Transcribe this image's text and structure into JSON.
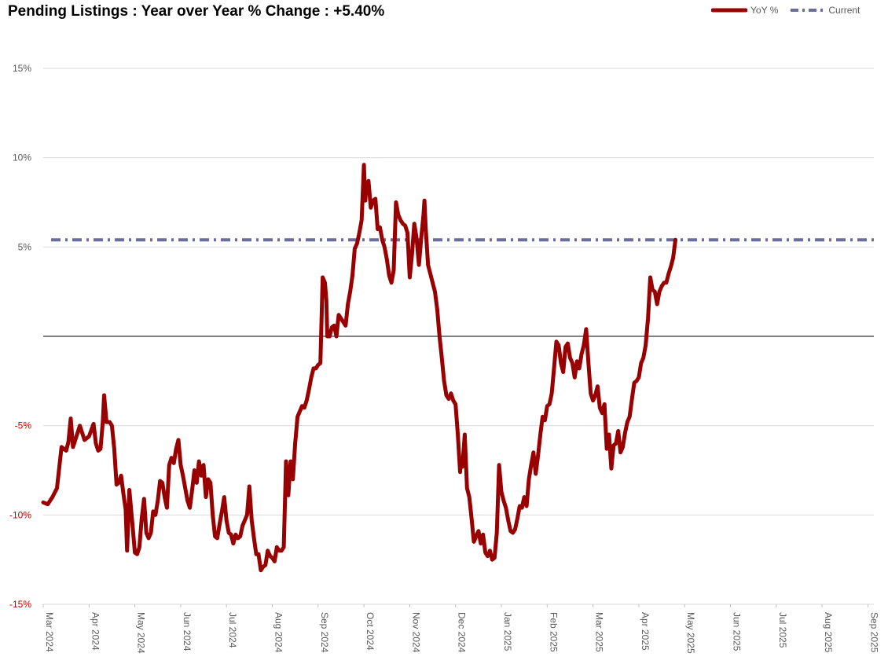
{
  "chart_data": {
    "type": "line",
    "title": "Pending Listings : Year over Year % Change : +5.40%",
    "y_ticks": [
      {
        "v": 15,
        "label": "15%"
      },
      {
        "v": 10,
        "label": "10%"
      },
      {
        "v": 5,
        "label": "5%"
      },
      {
        "v": -5,
        "label": "-5%"
      },
      {
        "v": -10,
        "label": "-10%"
      },
      {
        "v": -15,
        "label": "-15%"
      }
    ],
    "ylim": [
      -15,
      15
    ],
    "x_ticks": [
      "Mar 2024",
      "Apr 2024",
      "May 2024",
      "Jun 2024",
      "Jul 2024",
      "Aug 2024",
      "Sep 2024",
      "Oct 2024",
      "Nov 2024",
      "Dec 2024",
      "Jan 2025",
      "Feb 2025",
      "Mar 2025",
      "Apr 2025",
      "May 2025",
      "Jun 2025",
      "Jul 2025",
      "Aug 2025",
      "Sep 2025"
    ],
    "legend_position": "top-right",
    "grid": true,
    "colors": {
      "yoy": "#990000",
      "current": "#6c6c9c",
      "grid": "#d9d9d9",
      "zero": "#000000",
      "neg_tick": "#c00000",
      "pos_tick": "#595959"
    },
    "series": [
      {
        "name": "YoY %",
        "x_unit": "month index from Mar 2024",
        "points": [
          [
            0.0,
            -9.3
          ],
          [
            0.1,
            -9.4
          ],
          [
            0.2,
            -9.0
          ],
          [
            0.3,
            -8.5
          ],
          [
            0.4,
            -6.2
          ],
          [
            0.5,
            -6.4
          ],
          [
            0.55,
            -5.9
          ],
          [
            0.6,
            -4.6
          ],
          [
            0.65,
            -6.2
          ],
          [
            0.7,
            -5.8
          ],
          [
            0.8,
            -5.0
          ],
          [
            0.9,
            -5.8
          ],
          [
            1.0,
            -5.6
          ],
          [
            1.1,
            -4.9
          ],
          [
            1.15,
            -6.0
          ],
          [
            1.2,
            -6.4
          ],
          [
            1.25,
            -6.3
          ],
          [
            1.3,
            -4.8
          ],
          [
            1.33,
            -3.3
          ],
          [
            1.38,
            -4.8
          ],
          [
            1.45,
            -4.8
          ],
          [
            1.5,
            -5.0
          ],
          [
            1.55,
            -6.3
          ],
          [
            1.6,
            -8.3
          ],
          [
            1.65,
            -8.2
          ],
          [
            1.7,
            -7.8
          ],
          [
            1.75,
            -8.8
          ],
          [
            1.8,
            -9.7
          ],
          [
            1.83,
            -12.0
          ],
          [
            1.88,
            -8.6
          ],
          [
            1.95,
            -10.6
          ],
          [
            2.0,
            -12.1
          ],
          [
            2.05,
            -12.2
          ],
          [
            2.1,
            -11.8
          ],
          [
            2.15,
            -10.2
          ],
          [
            2.2,
            -9.1
          ],
          [
            2.25,
            -11.0
          ],
          [
            2.3,
            -11.3
          ],
          [
            2.35,
            -11.0
          ],
          [
            2.4,
            -9.8
          ],
          [
            2.45,
            -10.0
          ],
          [
            2.5,
            -9.2
          ],
          [
            2.55,
            -8.1
          ],
          [
            2.6,
            -8.2
          ],
          [
            2.65,
            -9.0
          ],
          [
            2.7,
            -9.6
          ],
          [
            2.75,
            -7.2
          ],
          [
            2.8,
            -6.8
          ],
          [
            2.85,
            -7.1
          ],
          [
            2.9,
            -6.3
          ],
          [
            2.95,
            -5.8
          ],
          [
            3.0,
            -7.2
          ],
          [
            3.05,
            -7.8
          ],
          [
            3.1,
            -8.5
          ],
          [
            3.15,
            -9.2
          ],
          [
            3.2,
            -9.6
          ],
          [
            3.25,
            -8.6
          ],
          [
            3.3,
            -7.5
          ],
          [
            3.35,
            -8.2
          ],
          [
            3.4,
            -7.0
          ],
          [
            3.45,
            -7.8
          ],
          [
            3.5,
            -7.2
          ],
          [
            3.55,
            -9.0
          ],
          [
            3.6,
            -8.0
          ],
          [
            3.65,
            -8.2
          ],
          [
            3.7,
            -10.0
          ],
          [
            3.75,
            -11.2
          ],
          [
            3.8,
            -11.3
          ],
          [
            3.85,
            -10.5
          ],
          [
            3.9,
            -9.8
          ],
          [
            3.95,
            -9.0
          ],
          [
            4.0,
            -10.3
          ],
          [
            4.05,
            -11.0
          ],
          [
            4.1,
            -11.1
          ],
          [
            4.15,
            -11.6
          ],
          [
            4.2,
            -11.1
          ],
          [
            4.25,
            -11.3
          ],
          [
            4.3,
            -11.2
          ],
          [
            4.35,
            -10.6
          ],
          [
            4.4,
            -10.3
          ],
          [
            4.45,
            -10.0
          ],
          [
            4.5,
            -8.4
          ],
          [
            4.55,
            -10.3
          ],
          [
            4.6,
            -11.3
          ],
          [
            4.65,
            -12.2
          ],
          [
            4.7,
            -12.2
          ],
          [
            4.75,
            -13.1
          ],
          [
            4.8,
            -12.9
          ],
          [
            4.85,
            -12.8
          ],
          [
            4.9,
            -12.0
          ],
          [
            4.95,
            -12.3
          ],
          [
            5.0,
            -12.4
          ],
          [
            5.05,
            -12.6
          ],
          [
            5.1,
            -11.8
          ],
          [
            5.15,
            -12.0
          ],
          [
            5.2,
            -12.0
          ],
          [
            5.25,
            -11.8
          ],
          [
            5.3,
            -7.0
          ],
          [
            5.35,
            -8.9
          ],
          [
            5.4,
            -7.0
          ],
          [
            5.45,
            -8.0
          ],
          [
            5.5,
            -6.0
          ],
          [
            5.55,
            -4.5
          ],
          [
            5.6,
            -4.2
          ],
          [
            5.65,
            -3.9
          ],
          [
            5.7,
            -4.0
          ],
          [
            5.75,
            -3.6
          ],
          [
            5.8,
            -3.0
          ],
          [
            5.85,
            -2.3
          ],
          [
            5.9,
            -1.8
          ],
          [
            5.95,
            -1.8
          ],
          [
            6.0,
            -1.6
          ],
          [
            6.05,
            -1.5
          ],
          [
            6.1,
            3.3
          ],
          [
            6.15,
            3.0
          ],
          [
            6.18,
            2.0
          ],
          [
            6.2,
            0.0
          ],
          [
            6.25,
            0.0
          ],
          [
            6.3,
            0.5
          ],
          [
            6.35,
            0.6
          ],
          [
            6.4,
            0.0
          ],
          [
            6.45,
            1.2
          ],
          [
            6.5,
            1.0
          ],
          [
            6.55,
            0.8
          ],
          [
            6.6,
            0.6
          ],
          [
            6.65,
            1.8
          ],
          [
            6.7,
            2.5
          ],
          [
            6.75,
            3.4
          ],
          [
            6.8,
            4.9
          ],
          [
            6.85,
            5.2
          ],
          [
            6.9,
            5.8
          ],
          [
            6.95,
            6.5
          ],
          [
            7.0,
            9.6
          ],
          [
            7.03,
            7.6
          ],
          [
            7.05,
            8.3
          ],
          [
            7.1,
            8.7
          ],
          [
            7.15,
            7.2
          ],
          [
            7.2,
            7.6
          ],
          [
            7.25,
            7.7
          ],
          [
            7.3,
            6.0
          ],
          [
            7.35,
            6.1
          ],
          [
            7.4,
            5.4
          ],
          [
            7.45,
            5.0
          ],
          [
            7.5,
            4.3
          ],
          [
            7.55,
            3.4
          ],
          [
            7.6,
            3.0
          ],
          [
            7.65,
            3.7
          ],
          [
            7.7,
            7.5
          ],
          [
            7.75,
            6.8
          ],
          [
            7.8,
            6.5
          ],
          [
            7.85,
            6.3
          ],
          [
            7.9,
            6.2
          ],
          [
            7.95,
            5.8
          ],
          [
            8.0,
            3.3
          ],
          [
            8.05,
            4.6
          ],
          [
            8.1,
            6.3
          ],
          [
            8.15,
            5.5
          ],
          [
            8.2,
            4.0
          ],
          [
            8.25,
            5.5
          ],
          [
            8.3,
            6.8
          ],
          [
            8.32,
            7.6
          ],
          [
            8.35,
            6.0
          ],
          [
            8.4,
            4.0
          ],
          [
            8.5,
            3.0
          ],
          [
            8.55,
            2.5
          ],
          [
            8.6,
            1.5
          ],
          [
            8.65,
            0.0
          ],
          [
            8.7,
            -1.2
          ],
          [
            8.75,
            -2.5
          ],
          [
            8.8,
            -3.3
          ],
          [
            8.85,
            -3.5
          ],
          [
            8.9,
            -3.2
          ],
          [
            8.95,
            -3.6
          ],
          [
            9.0,
            -3.8
          ],
          [
            9.05,
            -5.5
          ],
          [
            9.1,
            -7.6
          ],
          [
            9.12,
            -6.9
          ],
          [
            9.15,
            -7.3
          ],
          [
            9.2,
            -5.5
          ],
          [
            9.25,
            -8.5
          ],
          [
            9.3,
            -9.0
          ],
          [
            9.35,
            -10.2
          ],
          [
            9.4,
            -11.5
          ],
          [
            9.45,
            -11.2
          ],
          [
            9.5,
            -10.9
          ],
          [
            9.55,
            -11.6
          ],
          [
            9.6,
            -11.1
          ],
          [
            9.65,
            -12.1
          ],
          [
            9.7,
            -12.3
          ],
          [
            9.75,
            -12.0
          ],
          [
            9.8,
            -12.5
          ],
          [
            9.85,
            -12.4
          ],
          [
            9.9,
            -11.0
          ],
          [
            9.95,
            -7.2
          ],
          [
            10.0,
            -8.7
          ],
          [
            10.05,
            -9.2
          ],
          [
            10.1,
            -9.6
          ],
          [
            10.15,
            -10.3
          ],
          [
            10.2,
            -10.9
          ],
          [
            10.25,
            -11.0
          ],
          [
            10.3,
            -10.8
          ],
          [
            10.35,
            -10.2
          ],
          [
            10.4,
            -9.5
          ],
          [
            10.45,
            -9.6
          ],
          [
            10.5,
            -9.0
          ],
          [
            10.55,
            -9.5
          ],
          [
            10.6,
            -8.0
          ],
          [
            10.65,
            -7.2
          ],
          [
            10.7,
            -6.5
          ],
          [
            10.75,
            -7.7
          ],
          [
            10.8,
            -6.7
          ],
          [
            10.85,
            -5.5
          ],
          [
            10.9,
            -4.5
          ],
          [
            10.95,
            -4.7
          ],
          [
            11.0,
            -3.9
          ],
          [
            11.05,
            -3.8
          ],
          [
            11.1,
            -3.2
          ],
          [
            11.15,
            -1.8
          ],
          [
            11.2,
            -0.3
          ],
          [
            11.25,
            -0.5
          ],
          [
            11.3,
            -1.5
          ],
          [
            11.35,
            -2.0
          ],
          [
            11.4,
            -0.6
          ],
          [
            11.45,
            -0.4
          ],
          [
            11.5,
            -1.2
          ],
          [
            11.55,
            -1.5
          ],
          [
            11.6,
            -2.3
          ],
          [
            11.65,
            -1.4
          ],
          [
            11.7,
            -1.8
          ],
          [
            11.75,
            -1.0
          ],
          [
            11.8,
            -0.5
          ],
          [
            11.85,
            0.4
          ],
          [
            11.9,
            -1.5
          ],
          [
            11.95,
            -3.2
          ],
          [
            12.0,
            -3.6
          ],
          [
            12.05,
            -3.3
          ],
          [
            12.1,
            -2.8
          ],
          [
            12.15,
            -4.0
          ],
          [
            12.2,
            -4.3
          ],
          [
            12.25,
            -3.8
          ],
          [
            12.3,
            -6.3
          ],
          [
            12.35,
            -5.5
          ],
          [
            12.4,
            -7.4
          ],
          [
            12.45,
            -6.1
          ],
          [
            12.5,
            -6.0
          ],
          [
            12.55,
            -5.3
          ],
          [
            12.6,
            -6.5
          ],
          [
            12.65,
            -6.2
          ],
          [
            12.7,
            -5.4
          ],
          [
            12.75,
            -4.8
          ],
          [
            12.8,
            -4.5
          ],
          [
            12.85,
            -3.5
          ],
          [
            12.9,
            -2.6
          ],
          [
            12.95,
            -2.5
          ],
          [
            13.0,
            -2.3
          ],
          [
            13.05,
            -1.5
          ],
          [
            13.1,
            -1.2
          ],
          [
            13.15,
            -0.5
          ],
          [
            13.2,
            1.0
          ],
          [
            13.25,
            3.3
          ],
          [
            13.3,
            2.6
          ],
          [
            13.35,
            2.5
          ],
          [
            13.4,
            1.8
          ],
          [
            13.45,
            2.5
          ],
          [
            13.5,
            2.8
          ],
          [
            13.55,
            3.0
          ],
          [
            13.6,
            3.0
          ],
          [
            13.65,
            3.5
          ],
          [
            13.7,
            3.9
          ],
          [
            13.75,
            4.4
          ],
          [
            13.8,
            5.4
          ]
        ]
      },
      {
        "name": "Current",
        "value": 5.4
      }
    ]
  }
}
